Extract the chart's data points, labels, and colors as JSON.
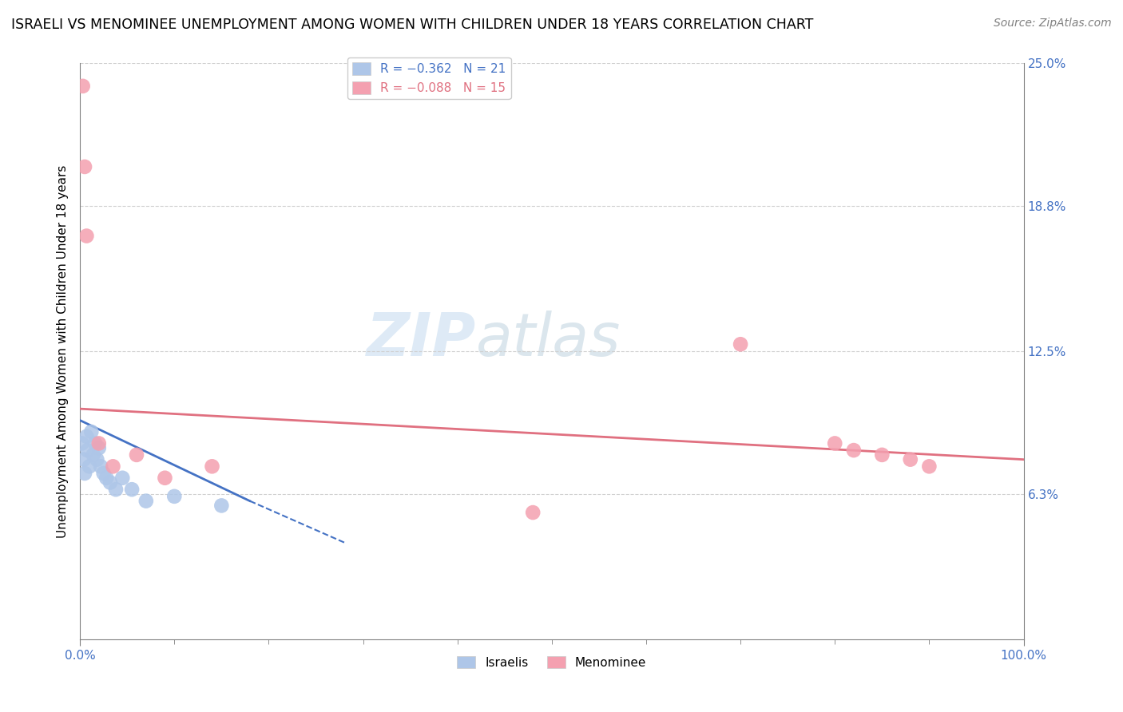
{
  "title": "ISRAELI VS MENOMINEE UNEMPLOYMENT AMONG WOMEN WITH CHILDREN UNDER 18 YEARS CORRELATION CHART",
  "source": "Source: ZipAtlas.com",
  "ylabel": "Unemployment Among Women with Children Under 18 years",
  "xlim": [
    0,
    100
  ],
  "ylim": [
    0,
    25
  ],
  "ytick_labels": [
    "6.3%",
    "12.5%",
    "18.8%",
    "25.0%"
  ],
  "ytick_values": [
    6.3,
    12.5,
    18.8,
    25.0
  ],
  "xtick_labels": [
    "0.0%",
    "100.0%"
  ],
  "legend_r_entries": [
    {
      "label": "R = −0.362   N = 21",
      "color": "#aec6e8"
    },
    {
      "label": "R = −0.088   N = 15",
      "color": "#f4a0b0"
    }
  ],
  "israelis_x": [
    0.2,
    0.4,
    0.5,
    0.7,
    0.8,
    1.0,
    1.2,
    1.4,
    1.6,
    1.8,
    2.0,
    2.2,
    2.5,
    2.8,
    3.2,
    3.8,
    4.5,
    5.5,
    7.0,
    10.0,
    15.0
  ],
  "israelis_y": [
    8.5,
    7.8,
    7.2,
    8.8,
    8.2,
    7.5,
    9.0,
    8.0,
    8.5,
    7.8,
    8.3,
    7.5,
    7.2,
    7.0,
    6.8,
    6.5,
    7.0,
    6.5,
    6.0,
    6.2,
    5.8
  ],
  "menominee_x": [
    0.3,
    0.5,
    0.7,
    2.0,
    3.5,
    6.0,
    9.0,
    14.0,
    48.0,
    70.0,
    80.0,
    82.0,
    85.0,
    88.0,
    90.0
  ],
  "menominee_y": [
    24.0,
    20.5,
    17.5,
    8.5,
    7.5,
    8.0,
    7.0,
    7.5,
    5.5,
    12.8,
    8.5,
    8.2,
    8.0,
    7.8,
    7.5
  ],
  "israeli_color": "#aec6e8",
  "menominee_color": "#f4a0b0",
  "israeli_line_color": "#4472c4",
  "menominee_line_color": "#e07080",
  "background_color": "#ffffff",
  "grid_color": "#d0d0d0",
  "title_fontsize": 12.5,
  "source_fontsize": 10,
  "axis_label_fontsize": 11,
  "legend_fontsize": 11,
  "men_line_x0": 0,
  "men_line_y0": 10.0,
  "men_line_x1": 100,
  "men_line_y1": 7.8,
  "isr_line_x0": 0,
  "isr_line_y0": 9.5,
  "isr_line_x1": 18,
  "isr_line_y1": 6.0,
  "isr_dash_x0": 18,
  "isr_dash_y0": 6.0,
  "isr_dash_x1": 28,
  "isr_dash_y1": 4.2
}
